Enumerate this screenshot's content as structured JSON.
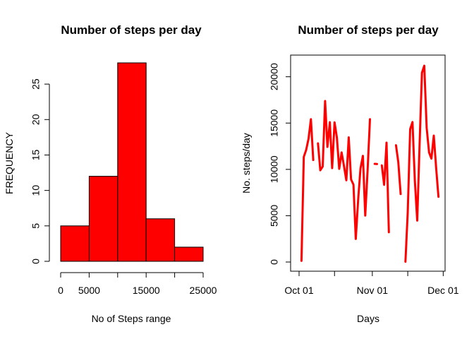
{
  "chart_data": [
    {
      "type": "bar",
      "title": "Number of steps per day",
      "xlabel": "No of Steps range",
      "ylabel": "FREQUENCY",
      "bins": [
        {
          "from": 0,
          "to": 5000,
          "count": 5
        },
        {
          "from": 5000,
          "to": 10000,
          "count": 12
        },
        {
          "from": 10000,
          "to": 15000,
          "count": 28
        },
        {
          "from": 15000,
          "to": 20000,
          "count": 6
        },
        {
          "from": 20000,
          "to": 25000,
          "count": 2
        }
      ],
      "bar_color": "#ff0000",
      "xlim": [
        0,
        25000
      ],
      "ylim": [
        0,
        28
      ],
      "x_ticks": [
        0,
        5000,
        10000,
        15000,
        20000,
        25000
      ],
      "x_tick_labels": [
        "0",
        "5000",
        "",
        "15000",
        "",
        "25000"
      ],
      "y_ticks": [
        0,
        5,
        10,
        15,
        20,
        25
      ],
      "y_tick_labels": [
        "0",
        "5",
        "10",
        "15",
        "20",
        "25"
      ],
      "grid": false,
      "legend": "none"
    },
    {
      "type": "line",
      "title": "Number of steps per day",
      "xlabel": "Days",
      "ylabel": "No. steps/day",
      "line_color": "#ff0000",
      "xlim": [
        "2012-10-01",
        "2012-11-30"
      ],
      "ylim": [
        0,
        21500
      ],
      "x_ticks": [
        "2012-10-01",
        "2012-10-16",
        "2012-11-01",
        "2012-11-16",
        "2012-12-01"
      ],
      "x_tick_labels": [
        "Oct 01",
        "",
        "Nov 01",
        "",
        "Dec 01"
      ],
      "y_ticks": [
        0,
        5000,
        10000,
        15000,
        20000
      ],
      "y_tick_labels": [
        "0",
        "5000",
        "10000",
        "15000",
        "20000"
      ],
      "grid": false,
      "legend": "none",
      "series": [
        {
          "x": [
            "2012-10-01",
            "2012-10-02",
            "2012-10-03",
            "2012-10-04",
            "2012-10-05",
            "2012-10-06",
            "2012-10-07",
            "2012-10-08",
            "2012-10-09",
            "2012-10-10",
            "2012-10-11",
            "2012-10-12",
            "2012-10-13",
            "2012-10-14",
            "2012-10-15",
            "2012-10-16",
            "2012-10-17",
            "2012-10-18",
            "2012-10-19",
            "2012-10-20",
            "2012-10-21",
            "2012-10-22",
            "2012-10-23",
            "2012-10-24",
            "2012-10-25",
            "2012-10-26",
            "2012-10-27",
            "2012-10-28",
            "2012-10-29",
            "2012-10-30",
            "2012-10-31",
            "2012-11-01",
            "2012-11-02",
            "2012-11-03",
            "2012-11-04",
            "2012-11-05",
            "2012-11-06",
            "2012-11-07",
            "2012-11-08",
            "2012-11-09",
            "2012-11-10",
            "2012-11-11",
            "2012-11-12",
            "2012-11-13",
            "2012-11-14",
            "2012-11-15",
            "2012-11-16",
            "2012-11-17",
            "2012-11-18",
            "2012-11-19",
            "2012-11-20",
            "2012-11-21",
            "2012-11-22",
            "2012-11-23",
            "2012-11-24",
            "2012-11-25",
            "2012-11-26",
            "2012-11-27",
            "2012-11-28",
            "2012-11-29",
            "2012-11-30"
          ],
          "values": [
            null,
            126,
            11352,
            12116,
            13294,
            15420,
            11015,
            null,
            12811,
            9900,
            10304,
            17382,
            12426,
            15098,
            10139,
            15084,
            13452,
            10056,
            11829,
            10395,
            8821,
            13460,
            8918,
            8355,
            2492,
            6778,
            10119,
            11458,
            5018,
            9819,
            15414,
            null,
            10600,
            10571,
            null,
            10439,
            8334,
            12883,
            3219,
            null,
            null,
            12608,
            10765,
            7336,
            null,
            41,
            5441,
            14339,
            15110,
            8841,
            4472,
            12787,
            20427,
            21194,
            14478,
            11834,
            11162,
            13646,
            10183,
            7047,
            null
          ]
        }
      ]
    }
  ]
}
